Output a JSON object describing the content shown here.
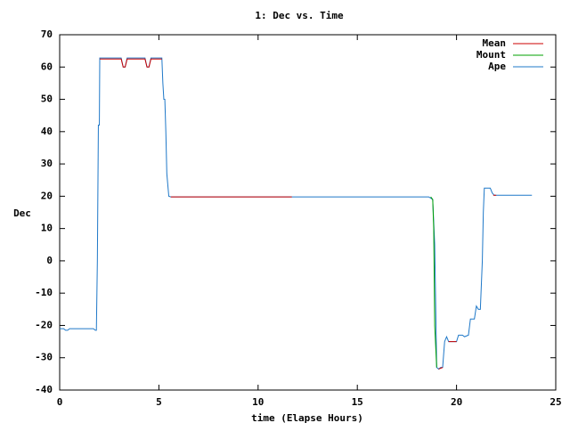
{
  "chart_data": {
    "type": "line",
    "title": "1: Dec vs. Time",
    "xlabel": "time (Elapse Hours)",
    "ylabel": "Dec",
    "xlim": [
      0,
      25
    ],
    "ylim": [
      -40,
      70
    ],
    "xticks": [
      0,
      5,
      10,
      15,
      20,
      25
    ],
    "yticks": [
      -40,
      -30,
      -20,
      -10,
      0,
      10,
      20,
      30,
      40,
      50,
      60,
      70
    ],
    "legend": "top-right",
    "series": [
      {
        "name": "Mean",
        "color": "#cc0000",
        "x": [
          2.02,
          3.1,
          3.2,
          3.3,
          3.4,
          4.3,
          4.4,
          4.5,
          4.6,
          5.15,
          5.4,
          5.6,
          11.7,
          15,
          19.1,
          19.3,
          19.45,
          19.6,
          20.0,
          21.0,
          21.85,
          22.0
        ],
        "values": [
          62.5,
          62.5,
          60,
          60,
          62.5,
          62.5,
          60,
          60,
          62.5,
          62.5,
          null,
          19.8,
          19.8,
          null,
          -33.5,
          -33,
          null,
          -25,
          -25,
          null,
          20.3,
          20.3
        ]
      },
      {
        "name": "Mount",
        "color": "#00a000",
        "x": [
          18.7,
          18.8,
          18.85,
          18.9,
          19.0
        ],
        "values": [
          19.8,
          19,
          10,
          -20,
          -33
        ]
      },
      {
        "name": "Ape",
        "color": "#1f78c8",
        "x": [
          0,
          0.2,
          0.3,
          0.4,
          0.5,
          1.7,
          1.8,
          1.85,
          1.9,
          1.95,
          2.0,
          2.02,
          3.1,
          3.2,
          3.3,
          3.4,
          4.3,
          4.4,
          4.5,
          4.6,
          5.15,
          5.2,
          5.25,
          5.3,
          5.35,
          5.4,
          5.5,
          5.6,
          18.6,
          18.8,
          18.9,
          19.0,
          19.1,
          19.2,
          19.3,
          19.4,
          19.5,
          19.6,
          20.0,
          20.1,
          20.3,
          20.4,
          20.6,
          20.7,
          20.9,
          21.0,
          21.1,
          21.2,
          21.3,
          21.35,
          21.4,
          21.7,
          21.8,
          21.9,
          23.8
        ],
        "values": [
          -21,
          -21,
          -21.5,
          -21.5,
          -21,
          -21,
          -21.5,
          -21.5,
          0,
          42,
          42,
          62.8,
          62.8,
          60,
          60,
          62.8,
          62.8,
          60,
          60,
          62.8,
          62.8,
          55,
          50,
          50,
          40,
          27,
          20,
          19.8,
          19.8,
          19,
          5,
          -33,
          -33.5,
          -33,
          -33,
          -25,
          -23.5,
          -25,
          -25,
          -23,
          -23,
          -23.5,
          -23,
          -18,
          -18,
          -14,
          -15,
          -15,
          0,
          15,
          22.5,
          22.5,
          21,
          20.3,
          20.3
        ]
      }
    ]
  }
}
